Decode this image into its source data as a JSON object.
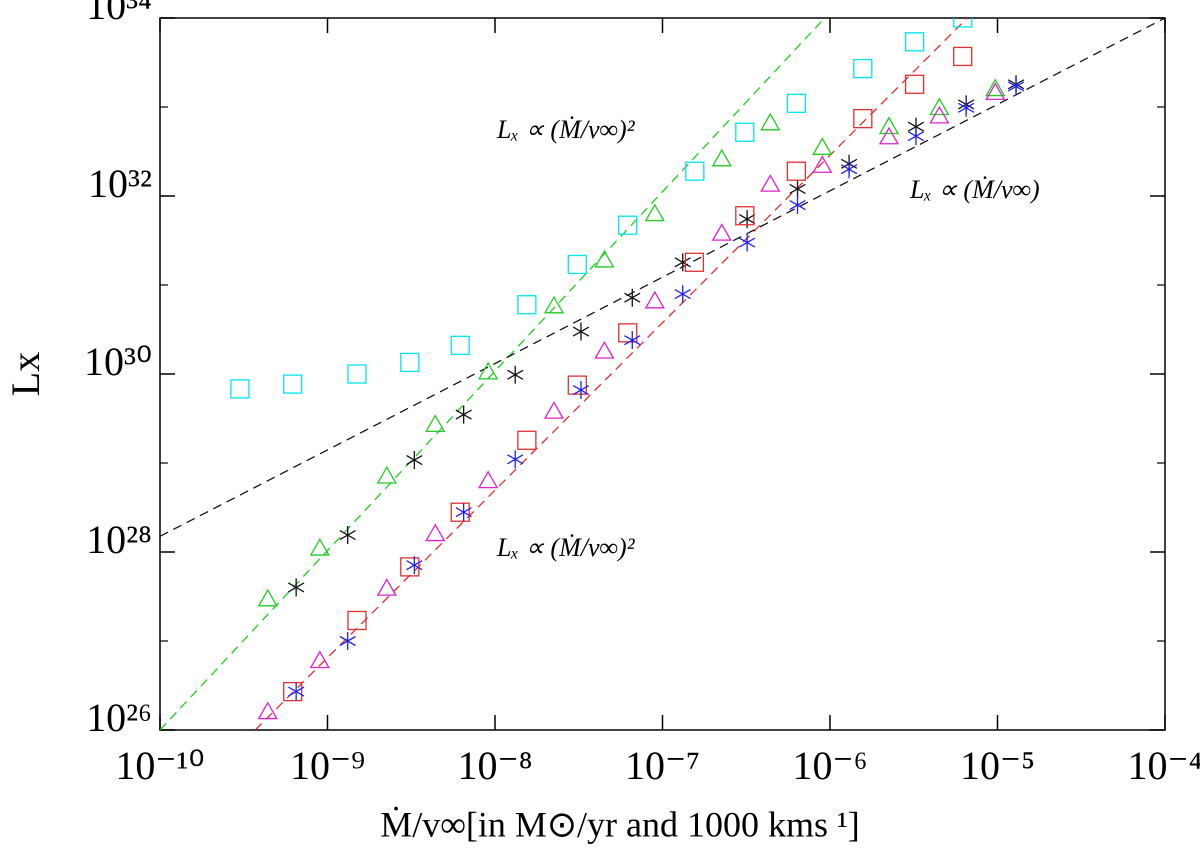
{
  "chart_data": {
    "type": "scatter",
    "xlabel": "Ṁ/v∞[in M⊙/yr and 1000 kms ¹]",
    "ylabel": "Lx",
    "xscale": "log",
    "yscale": "log",
    "xlim": [
      1e-10,
      0.0001
    ],
    "ylim": [
      1e+26,
      1e+34
    ],
    "xticks": [
      {
        "value": 1e-10,
        "label": "10⁻¹⁰"
      },
      {
        "value": 1e-09,
        "label": "10⁻⁹"
      },
      {
        "value": 1e-08,
        "label": "10⁻⁸"
      },
      {
        "value": 1e-07,
        "label": "10⁻⁷"
      },
      {
        "value": 1e-06,
        "label": "10⁻⁶"
      },
      {
        "value": 1e-05,
        "label": "10⁻⁵"
      },
      {
        "value": 0.0001,
        "label": "10⁻⁴"
      }
    ],
    "yticks": [
      {
        "value": 1e+26,
        "label": "10²⁶"
      },
      {
        "value": 1e+28,
        "label": "10²⁸"
      },
      {
        "value": 1e+30,
        "label": "10³⁰"
      },
      {
        "value": 1e+32,
        "label": "10³²"
      },
      {
        "value": 1e+34,
        "label": "10³⁴"
      }
    ],
    "y_minor_ticks": [
      1e+27,
      1e+29,
      1e+31,
      1e+33
    ],
    "annotations": [
      "Lₓ ∝ (Ṁ/v∞)²",
      "Lₓ ∝ (Ṁ/v∞)",
      "Lₓ ∝ (Ṁ/v∞)²"
    ],
    "series": [
      {
        "color": "#00e5ee",
        "marker": "square",
        "x": [
          3e-10,
          6.2e-10,
          1.5e-09,
          3.1e-09,
          6.2e-09,
          1.55e-08,
          3.1e-08,
          6.2e-08,
          1.56e-07,
          3.1e-07,
          6.3e-07,
          1.57e-06,
          3.2e-06,
          6.2e-06
        ],
        "values": [
          6.8e+29,
          7.7e+29,
          1e+30,
          1.35e+30,
          2.1e+30,
          6e+30,
          1.7e+31,
          4.7e+31,
          1.9e+32,
          5.2e+32,
          1.1e+33,
          2.7e+33,
          5.4e+33,
          1e+34
        ]
      },
      {
        "color": "#22cc22",
        "marker": "triangle",
        "x": [
          4.4e-10,
          9e-10,
          2.26e-09,
          4.4e-09,
          9.1e-09,
          2.25e-08,
          4.5e-08,
          9e-08,
          2.26e-07,
          4.4e-07,
          9e-07,
          2.25e-06,
          4.5e-06,
          9.7e-06
        ],
        "values": [
          2.96e+27,
          1.1e+28,
          7.1e+28,
          2.7e+29,
          1.05e+30,
          5.8e+30,
          1.9e+31,
          6.3e+31,
          2.6e+32,
          6.6e+32,
          3.5e+32,
          6e+32,
          9.8e+32,
          1.6e+33
        ]
      },
      {
        "color": "#111111",
        "marker": "asterisk",
        "x": [
          6.5e-10,
          1.32e-09,
          3.3e-09,
          6.5e-09,
          1.32e-08,
          3.26e-08,
          6.6e-08,
          1.32e-07,
          3.2e-07,
          6.4e-07,
          1.3e-06,
          3.26e-06,
          6.5e-06,
          1.29e-05
        ],
        "values": [
          4e+27,
          1.55e+28,
          1.08e+29,
          3.5e+29,
          9.8e+29,
          3e+30,
          7.2e+30,
          1.8e+31,
          5.5e+31,
          1.2e+32,
          2.3e+32,
          6e+32,
          1.07e+33,
          1.8e+33
        ]
      },
      {
        "color": "#e03030",
        "marker": "square",
        "x": [
          6.2e-10,
          1.5e-09,
          3.1e-09,
          6.2e-09,
          1.55e-08,
          3.1e-08,
          6.2e-08,
          1.55e-07,
          3.1e-07,
          6.3e-07,
          1.57e-06,
          3.2e-06,
          6.2e-06
        ],
        "values": [
          2.7e+26,
          1.7e+27,
          6.8e+27,
          2.8e+28,
          1.8e+29,
          7.5e+29,
          2.9e+30,
          1.8e+31,
          6e+31,
          1.9e+32,
          7.4e+32,
          1.8e+33,
          3.7e+33
        ]
      },
      {
        "color": "#dd22cc",
        "marker": "triangle",
        "x": [
          4.4e-10,
          9e-10,
          2.26e-09,
          4.4e-09,
          9.1e-09,
          2.25e-08,
          4.5e-08,
          9e-08,
          2.26e-07,
          4.4e-07,
          9e-07,
          2.25e-06,
          4.5e-06,
          9.7e-06
        ],
        "values": [
          1.6e+26,
          6e+26,
          3.9e+27,
          1.6e+28,
          6.3e+28,
          3.8e+29,
          1.8e+30,
          6.6e+30,
          3.8e+31,
          1.35e+32,
          2.2e+32,
          4.6e+32,
          7.9e+32,
          1.45e+33
        ]
      },
      {
        "color": "#2222ee",
        "marker": "asterisk",
        "x": [
          6.5e-10,
          1.32e-09,
          3.3e-09,
          6.5e-09,
          1.32e-08,
          3.26e-08,
          6.6e-08,
          1.32e-07,
          3.2e-07,
          6.4e-07,
          1.3e-06,
          3.26e-06,
          6.5e-06,
          1.29e-05
        ],
        "values": [
          2.7e+26,
          1e+27,
          7.1e+27,
          2.8e+28,
          1.1e+29,
          6.6e+29,
          2.4e+30,
          7.9e+30,
          3e+31,
          7.9e+31,
          2e+32,
          4.7e+32,
          9.8e+32,
          1.7e+33
        ]
      }
    ],
    "lines": [
      {
        "color": "#22cc22",
        "dash": true,
        "x": [
          1e-10,
          9.3e-07
        ],
        "values": [
          1e+26,
          1e+34
        ]
      },
      {
        "color": "#e03030",
        "dash": true,
        "x": [
          3.7e-10,
          6.6e-06
        ],
        "values": [
          1e+26,
          1e+34
        ]
      },
      {
        "color": "#111111",
        "dash": true,
        "x": [
          1e-10,
          0.0001
        ],
        "values": [
          1.5e+28,
          1e+34
        ]
      }
    ]
  }
}
